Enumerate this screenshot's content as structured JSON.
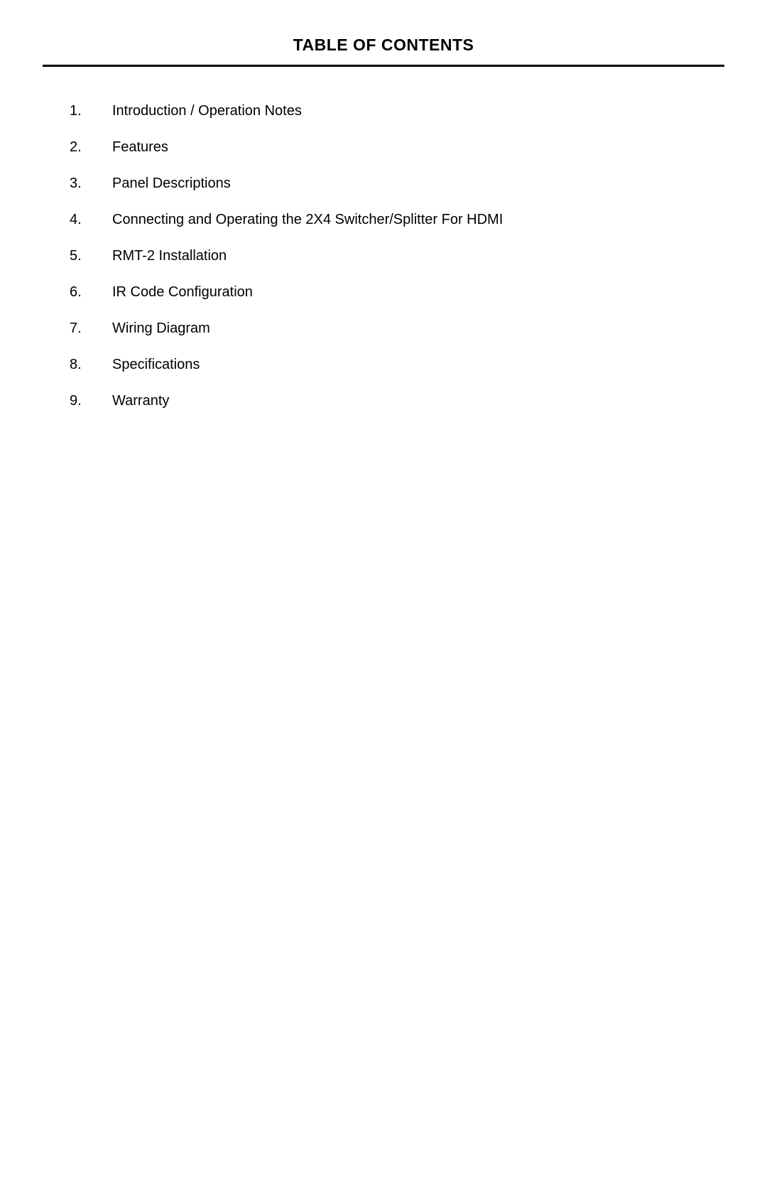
{
  "title": "TABLE OF CONTENTS",
  "title_fontsize": 23,
  "title_fontweight": "bold",
  "title_color": "#000000",
  "divider_color": "#000000",
  "divider_width": 3,
  "background_color": "#ffffff",
  "text_color": "#000000",
  "item_fontsize": 20,
  "item_spacing": 23,
  "entries": [
    {
      "number": "1.",
      "text": "Introduction / Operation Notes"
    },
    {
      "number": "2.",
      "text": "Features"
    },
    {
      "number": "3.",
      "text": "Panel Descriptions"
    },
    {
      "number": "4.",
      "text": "Connecting and Operating the 2X4 Switcher/Splitter For HDMI"
    },
    {
      "number": "5.",
      "text": "RMT-2 Installation"
    },
    {
      "number": "6.",
      "text": "IR Code Configuration"
    },
    {
      "number": "7.",
      "text": "Wiring Diagram"
    },
    {
      "number": "8.",
      "text": "Specifications"
    },
    {
      "number": "9.",
      "text": "Warranty"
    }
  ]
}
